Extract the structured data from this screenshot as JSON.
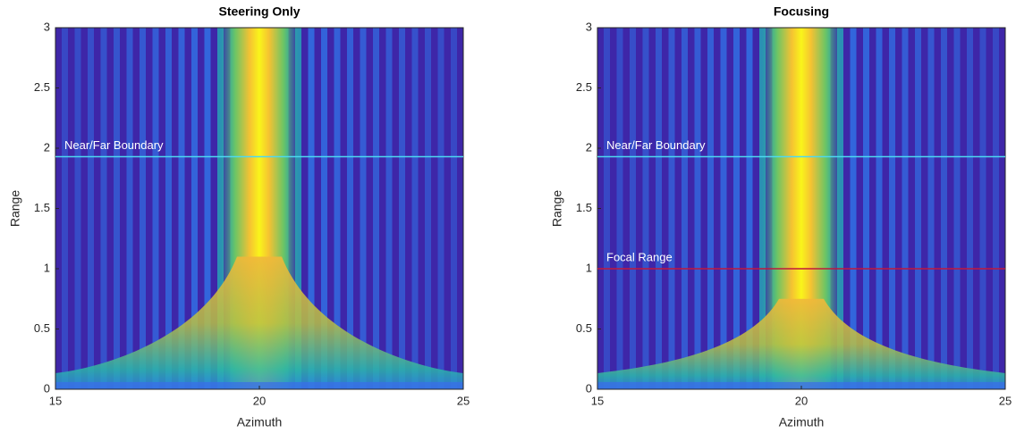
{
  "chart_data": [
    {
      "type": "heatmap",
      "title": "Steering Only",
      "xlabel": "Azimuth",
      "ylabel": "Range",
      "xlim": [
        15,
        25
      ],
      "ylim": [
        0,
        3
      ],
      "xticks": [
        15,
        20,
        25
      ],
      "yticks": [
        0,
        0.5,
        1,
        1.5,
        2,
        2.5,
        3
      ],
      "lines": [
        {
          "label": "Near/Far Boundary",
          "value": 1.93,
          "color": "#4dd9f0"
        }
      ]
    },
    {
      "type": "heatmap",
      "title": "Focusing",
      "xlabel": "Azimuth",
      "ylabel": "Range",
      "xlim": [
        15,
        25
      ],
      "ylim": [
        0,
        3
      ],
      "xticks": [
        15,
        20,
        25
      ],
      "yticks": [
        0,
        0.5,
        1,
        1.5,
        2,
        2.5,
        3
      ],
      "lines": [
        {
          "label": "Near/Far Boundary",
          "value": 1.93,
          "color": "#4dd9f0"
        },
        {
          "label": "Focal Range",
          "value": 1,
          "color": "#c0183c"
        }
      ]
    }
  ]
}
